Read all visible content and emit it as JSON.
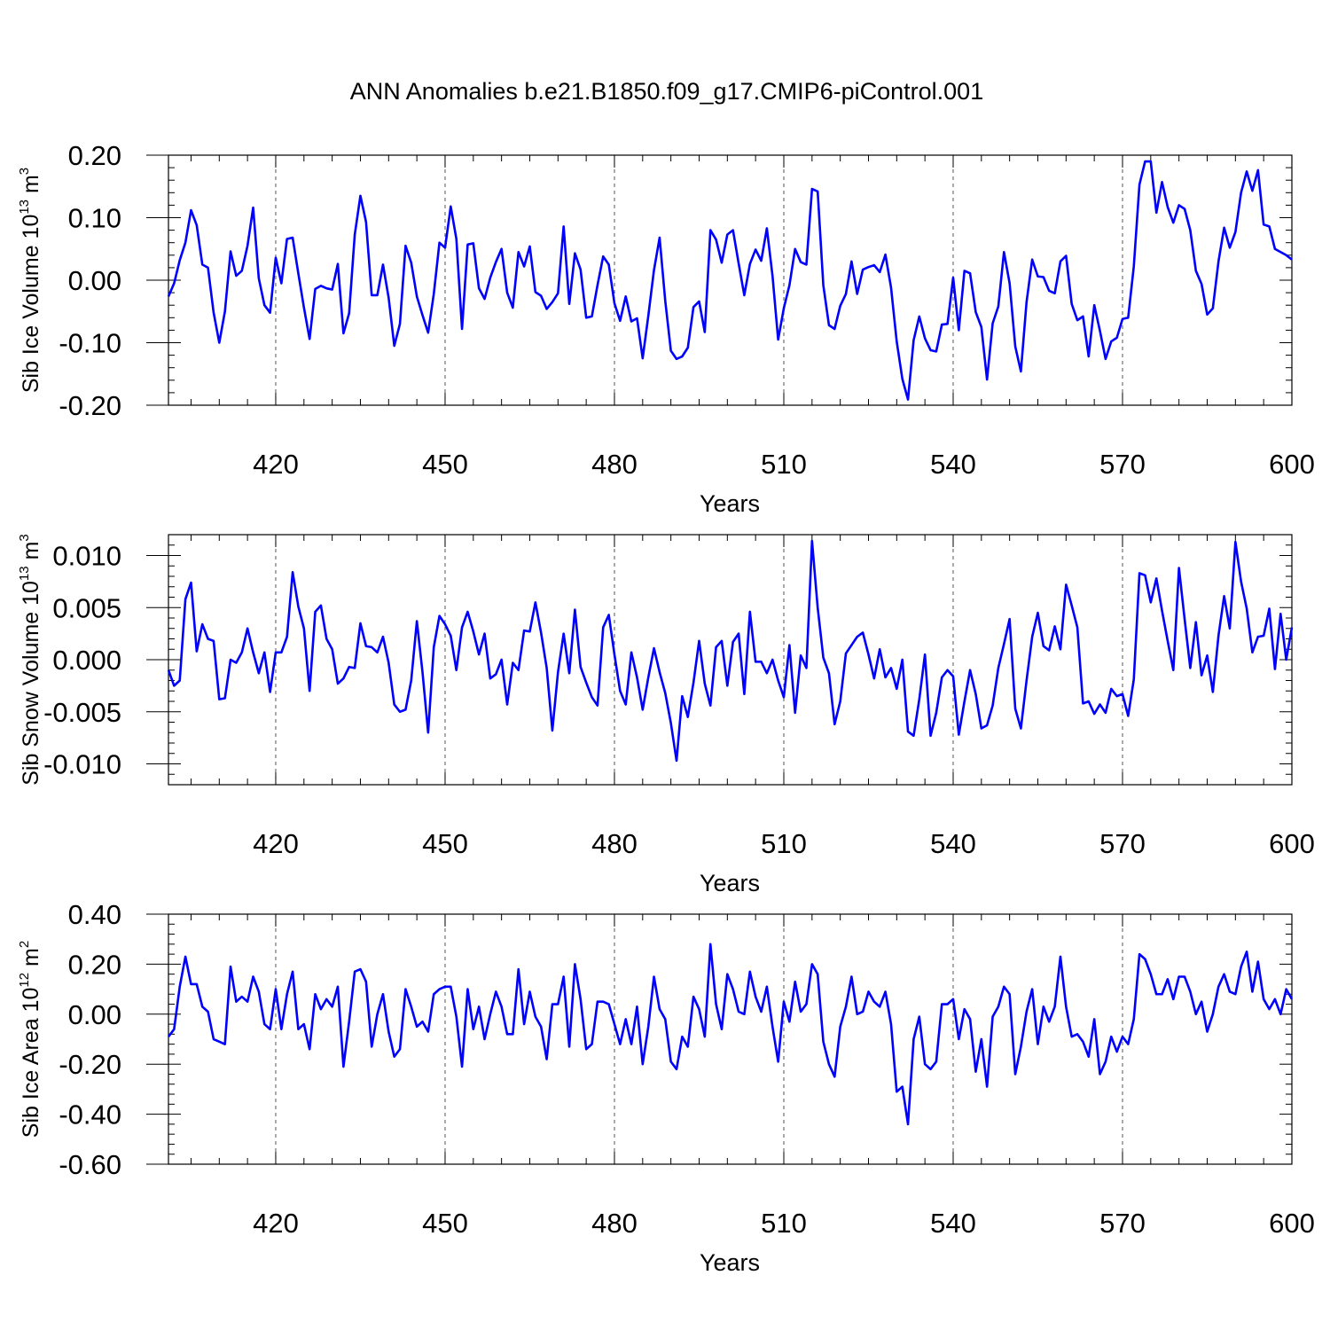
{
  "title": "ANN Anomalies b.e21.B1850.f09_g17.CMIP6-piControl.001",
  "chart_data": [
    {
      "type": "line",
      "xlabel": "Years",
      "ylabel": {
        "base": "Sib Ice Volume 10",
        "exp": "13",
        "unit": " m",
        "unit_exp": "3"
      },
      "xlim": [
        401,
        600
      ],
      "ylim": [
        -0.2,
        0.2
      ],
      "xticks": [
        420,
        450,
        480,
        510,
        540,
        570,
        600
      ],
      "xtick_labels": [
        "420",
        "450",
        "480",
        "510",
        "540",
        "570",
        "600"
      ],
      "yticks": [
        -0.2,
        -0.1,
        0.0,
        0.1,
        0.2
      ],
      "ytick_labels": [
        "-0.20",
        "-0.10",
        "0.00",
        "0.10",
        "0.20"
      ],
      "grid": "dashed vertical at major x ticks",
      "color": "#0000ff",
      "series": [
        {
          "x_start": 401,
          "x_step": 1,
          "values": [
            -0.026,
            -0.005,
            0.032,
            0.06,
            0.112,
            0.088,
            0.025,
            0.02,
            -0.052,
            -0.1,
            -0.05,
            0.046,
            0.007,
            0.015,
            0.055,
            0.116,
            0.003,
            -0.04,
            -0.052,
            0.036,
            -0.005,
            0.066,
            0.068,
            0.011,
            -0.044,
            -0.094,
            -0.014,
            -0.009,
            -0.013,
            -0.015,
            0.026,
            -0.085,
            -0.053,
            0.073,
            0.135,
            0.093,
            -0.024,
            -0.024,
            0.025,
            -0.028,
            -0.105,
            -0.07,
            0.055,
            0.028,
            -0.026,
            -0.056,
            -0.084,
            -0.022,
            0.06,
            0.052,
            0.118,
            0.066,
            -0.078,
            0.057,
            0.059,
            -0.013,
            -0.03,
            0.004,
            0.029,
            0.05,
            -0.02,
            -0.044,
            0.045,
            0.022,
            0.054,
            -0.019,
            -0.025,
            -0.046,
            -0.035,
            -0.021,
            0.086,
            -0.038,
            0.043,
            0.017,
            -0.06,
            -0.058,
            -0.008,
            0.038,
            0.025,
            -0.037,
            -0.065,
            -0.026,
            -0.066,
            -0.061,
            -0.125,
            -0.057,
            0.016,
            0.068,
            -0.033,
            -0.113,
            -0.126,
            -0.122,
            -0.108,
            -0.043,
            -0.034,
            -0.083,
            0.08,
            0.065,
            0.028,
            0.073,
            0.08,
            0.027,
            -0.024,
            0.026,
            0.049,
            0.031,
            0.083,
            0.007,
            -0.095,
            -0.045,
            -0.008,
            0.05,
            0.029,
            0.025,
            0.146,
            0.142,
            -0.008,
            -0.072,
            -0.078,
            -0.041,
            -0.022,
            0.03,
            -0.022,
            0.017,
            0.021,
            0.024,
            0.013,
            0.041,
            -0.012,
            -0.098,
            -0.158,
            -0.191,
            -0.096,
            -0.058,
            -0.093,
            -0.112,
            -0.114,
            -0.071,
            -0.07,
            0.004,
            -0.08,
            0.015,
            0.011,
            -0.051,
            -0.075,
            -0.159,
            -0.069,
            -0.042,
            0.045,
            -0.005,
            -0.106,
            -0.146,
            -0.035,
            0.033,
            0.006,
            0.005,
            -0.017,
            -0.021,
            0.03,
            0.039,
            -0.038,
            -0.064,
            -0.058,
            -0.122,
            -0.04,
            -0.081,
            -0.126,
            -0.098,
            -0.092,
            -0.062,
            -0.06,
            0.022,
            0.153,
            0.19,
            0.19,
            0.108,
            0.157,
            0.117,
            0.092,
            0.12,
            0.114,
            0.08,
            0.015,
            -0.006,
            -0.055,
            -0.045,
            0.03,
            0.084,
            0.052,
            0.077,
            0.14,
            0.174,
            0.143,
            0.176,
            0.089,
            0.086,
            0.05,
            0.045,
            0.04,
            0.033
          ]
        }
      ]
    },
    {
      "type": "line",
      "xlabel": "Years",
      "ylabel": {
        "base": "Sib Snow Volume 10",
        "exp": "13",
        "unit": " m",
        "unit_exp": "3"
      },
      "xlim": [
        401,
        600
      ],
      "ylim": [
        -0.012,
        0.012
      ],
      "xticks": [
        420,
        450,
        480,
        510,
        540,
        570,
        600
      ],
      "xtick_labels": [
        "420",
        "450",
        "480",
        "510",
        "540",
        "570",
        "600"
      ],
      "yticks": [
        -0.01,
        -0.005,
        0.0,
        0.005,
        0.01
      ],
      "ytick_labels": [
        "-0.010",
        "-0.005",
        "0.000",
        "0.005",
        "0.010"
      ],
      "grid": "dashed vertical at major x ticks",
      "color": "#0000ff",
      "series": [
        {
          "x_start": 401,
          "x_step": 1,
          "values": [
            -0.001,
            -0.0025,
            -0.002,
            0.0058,
            0.0074,
            0.0008,
            0.0034,
            0.002,
            0.0018,
            -0.0038,
            -0.0037,
            0.0,
            -0.0003,
            0.0007,
            0.003,
            0.0007,
            -0.0013,
            0.0007,
            -0.0031,
            0.0007,
            0.0007,
            0.0022,
            0.0084,
            0.0051,
            0.003,
            -0.003,
            0.0046,
            0.0052,
            0.002,
            0.001,
            -0.0023,
            -0.0018,
            -0.0007,
            -0.0008,
            0.0035,
            0.0013,
            0.0012,
            0.0007,
            0.0022,
            -0.0003,
            -0.0043,
            -0.005,
            -0.0048,
            -0.002,
            0.0037,
            -0.0012,
            -0.007,
            0.0012,
            0.0042,
            0.0034,
            0.0023,
            -0.001,
            0.0031,
            0.0046,
            0.0027,
            0.0005,
            0.0025,
            -0.0018,
            -0.0014,
            0.0,
            -0.0043,
            -0.0003,
            -0.001,
            0.0028,
            0.0027,
            0.0055,
            0.0026,
            -0.0008,
            -0.0068,
            -0.0012,
            0.0025,
            -0.0013,
            0.0048,
            -0.0007,
            -0.0022,
            -0.0036,
            -0.0044,
            0.0031,
            0.0043,
            0.0005,
            -0.003,
            -0.0043,
            0.0007,
            -0.0017,
            -0.0048,
            -0.0017,
            0.0011,
            -0.0012,
            -0.0032,
            -0.0061,
            -0.0097,
            -0.0035,
            -0.0055,
            -0.0022,
            0.0018,
            -0.0023,
            -0.0044,
            0.0012,
            0.0018,
            -0.0025,
            0.0017,
            0.0025,
            -0.0033,
            0.0046,
            -0.0002,
            -0.0002,
            -0.0013,
            0.0,
            -0.002,
            -0.0036,
            0.0014,
            -0.0051,
            0.0004,
            -0.0008,
            0.0114,
            0.005,
            0.0002,
            -0.0013,
            -0.0062,
            -0.004,
            0.0006,
            0.0014,
            0.0022,
            0.0026,
            0.0005,
            -0.0018,
            0.001,
            -0.0017,
            -0.0008,
            -0.0028,
            0.0,
            -0.0069,
            -0.0073,
            -0.0038,
            0.0005,
            -0.0073,
            -0.0051,
            -0.0017,
            -0.001,
            -0.0016,
            -0.0072,
            -0.004,
            -0.001,
            -0.0033,
            -0.0066,
            -0.0063,
            -0.0044,
            -0.0008,
            0.0015,
            0.0039,
            -0.0047,
            -0.0066,
            -0.002,
            0.0022,
            0.0045,
            0.0013,
            0.0009,
            0.0032,
            0.001,
            0.0072,
            0.0052,
            0.0031,
            -0.0042,
            -0.004,
            -0.0052,
            -0.0043,
            -0.0051,
            -0.0028,
            -0.0035,
            -0.0033,
            -0.0054,
            -0.0019,
            0.0083,
            0.0081,
            0.0055,
            0.0078,
            0.0047,
            0.0018,
            -0.001,
            0.0088,
            0.0039,
            -0.0008,
            0.0036,
            -0.0015,
            0.0004,
            -0.0031,
            0.0023,
            0.0061,
            0.003,
            0.0113,
            0.0075,
            0.0049,
            0.0007,
            0.0022,
            0.0023,
            0.0049,
            -0.0009,
            0.0044,
            0.0,
            0.0031
          ]
        }
      ]
    },
    {
      "type": "line",
      "xlabel": "Years",
      "ylabel": {
        "base": "Sib Ice Area 10",
        "exp": "12",
        "unit": " m",
        "unit_exp": "2"
      },
      "xlim": [
        401,
        600
      ],
      "ylim": [
        -0.6,
        0.4
      ],
      "xticks": [
        420,
        450,
        480,
        510,
        540,
        570,
        600
      ],
      "xtick_labels": [
        "420",
        "450",
        "480",
        "510",
        "540",
        "570",
        "600"
      ],
      "yticks": [
        -0.6,
        -0.4,
        -0.2,
        0.0,
        0.2,
        0.4
      ],
      "ytick_labels": [
        "-0.60",
        "-0.40",
        "-0.20",
        "0.00",
        "0.20",
        "0.40"
      ],
      "grid": "dashed vertical at major x ticks",
      "color": "#0000ff",
      "series": [
        {
          "x_start": 401,
          "x_step": 1,
          "values": [
            -0.09,
            -0.06,
            0.11,
            0.23,
            0.12,
            0.12,
            0.03,
            0.01,
            -0.1,
            -0.11,
            -0.12,
            0.19,
            0.05,
            0.07,
            0.05,
            0.15,
            0.09,
            -0.04,
            -0.06,
            0.1,
            -0.06,
            0.08,
            0.17,
            -0.06,
            -0.04,
            -0.14,
            0.08,
            0.02,
            0.06,
            0.03,
            0.11,
            -0.21,
            -0.03,
            0.17,
            0.18,
            0.13,
            -0.13,
            0.0,
            0.08,
            -0.07,
            -0.17,
            -0.14,
            0.1,
            0.03,
            -0.05,
            -0.03,
            -0.07,
            0.08,
            0.1,
            0.11,
            0.11,
            -0.01,
            -0.21,
            0.1,
            -0.06,
            0.03,
            -0.1,
            0.0,
            0.09,
            0.03,
            -0.08,
            -0.08,
            0.18,
            -0.04,
            0.09,
            -0.01,
            -0.05,
            -0.18,
            0.04,
            0.04,
            0.15,
            -0.13,
            0.2,
            0.06,
            -0.14,
            -0.12,
            0.05,
            0.05,
            0.04,
            -0.04,
            -0.12,
            -0.02,
            -0.12,
            0.03,
            -0.2,
            -0.05,
            0.15,
            0.02,
            -0.02,
            -0.19,
            -0.22,
            -0.09,
            -0.13,
            0.07,
            0.02,
            -0.09,
            0.28,
            0.04,
            -0.06,
            0.16,
            0.1,
            0.01,
            0.0,
            0.17,
            0.07,
            0.01,
            0.11,
            -0.05,
            -0.19,
            0.05,
            -0.03,
            0.13,
            0.01,
            0.04,
            0.2,
            0.16,
            -0.11,
            -0.2,
            -0.25,
            -0.05,
            0.03,
            0.15,
            0.0,
            0.01,
            0.09,
            0.05,
            0.03,
            0.09,
            -0.04,
            -0.31,
            -0.29,
            -0.44,
            -0.1,
            -0.01,
            -0.2,
            -0.22,
            -0.19,
            0.04,
            0.04,
            0.06,
            -0.1,
            0.02,
            -0.02,
            -0.23,
            -0.1,
            -0.29,
            -0.01,
            0.03,
            0.11,
            0.08,
            -0.24,
            -0.13,
            0.01,
            0.1,
            -0.12,
            0.03,
            -0.03,
            0.03,
            0.23,
            0.03,
            -0.09,
            -0.08,
            -0.11,
            -0.17,
            -0.02,
            -0.24,
            -0.19,
            -0.09,
            -0.15,
            -0.09,
            -0.12,
            -0.02,
            0.24,
            0.22,
            0.16,
            0.08,
            0.08,
            0.14,
            0.06,
            0.15,
            0.15,
            0.09,
            0.0,
            0.05,
            -0.07,
            0.0,
            0.11,
            0.16,
            0.09,
            0.08,
            0.19,
            0.25,
            0.09,
            0.21,
            0.06,
            0.02,
            0.06,
            0.0,
            0.1,
            0.06
          ]
        }
      ]
    }
  ]
}
